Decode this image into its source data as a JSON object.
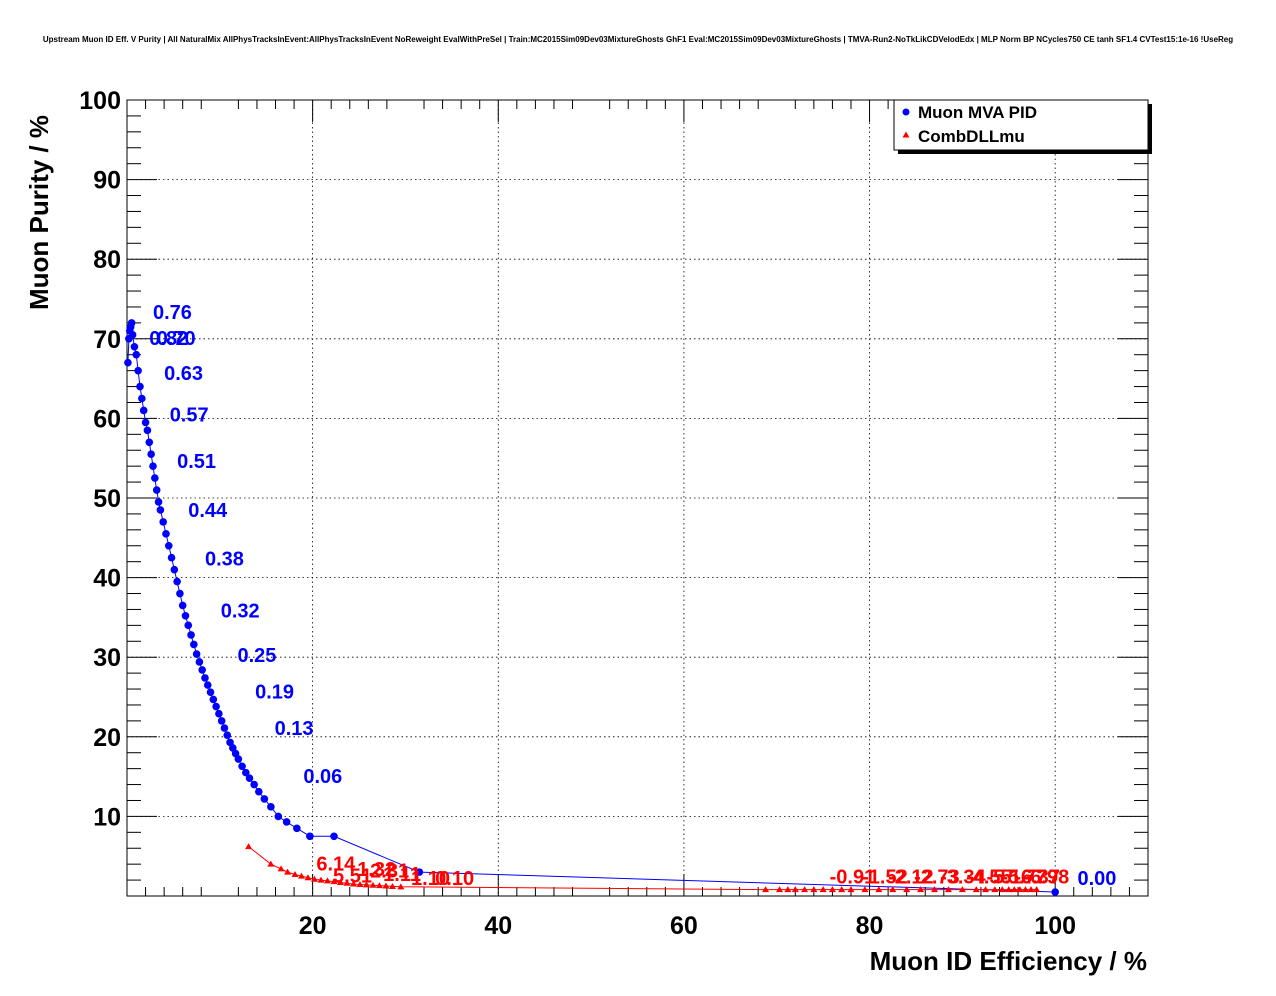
{
  "chart_data": {
    "type": "scatter",
    "title": "Upstream Muon ID Eff. V Purity | All NaturalMix AllPhysTracksInEvent:AllPhysTracksInEvent NoReweight EvalWithPreSel | Train:MC2015Sim09Dev03MixtureGhosts GhF1 Eval:MC2015Sim09Dev03MixtureGhosts | TMVA-Run2-NoTkLikCDVelodEdx | MLP Norm BP NCycles750 CE tanh SF1.4 CVTest15:1e-16 !UseReg",
    "xlabel": "Muon ID Efficiency / %",
    "ylabel": "Muon Purity / %",
    "xlim": [
      0,
      110
    ],
    "ylim": [
      0,
      100
    ],
    "x_ticks": [
      20,
      40,
      60,
      80,
      100
    ],
    "y_ticks": [
      10,
      20,
      30,
      40,
      50,
      60,
      70,
      80,
      90,
      100
    ],
    "grid": true,
    "legend_position": "top-right",
    "series": [
      {
        "name": "Muon MVA PID",
        "color": "#0000ff",
        "marker": "circle",
        "x": [
          0.1,
          0.2,
          0.3,
          0.4,
          0.5,
          0.6,
          0.8,
          1.0,
          1.2,
          1.4,
          1.6,
          1.8,
          2.0,
          2.2,
          2.4,
          2.6,
          2.8,
          3.0,
          3.2,
          3.4,
          3.6,
          3.9,
          4.2,
          4.5,
          4.8,
          5.1,
          5.4,
          5.7,
          6.0,
          6.3,
          6.6,
          6.9,
          7.2,
          7.5,
          7.8,
          8.1,
          8.4,
          8.7,
          9.0,
          9.3,
          9.6,
          9.9,
          10.2,
          10.5,
          10.8,
          11.1,
          11.4,
          11.7,
          12.0,
          12.4,
          12.8,
          13.2,
          13.7,
          14.2,
          14.8,
          15.5,
          16.3,
          17.2,
          18.3,
          19.7,
          22.3,
          31.5,
          100.0
        ],
        "y": [
          67.0,
          70.0,
          71.0,
          71.5,
          72.0,
          70.5,
          69.0,
          68.0,
          66.0,
          64.0,
          62.5,
          61.0,
          59.5,
          58.5,
          57.0,
          55.5,
          54.0,
          52.5,
          51.0,
          49.5,
          48.5,
          47.0,
          45.5,
          44.0,
          42.5,
          41.0,
          39.5,
          38.0,
          36.5,
          35.2,
          34.0,
          32.8,
          31.6,
          30.4,
          29.4,
          28.4,
          27.4,
          26.5,
          25.6,
          24.7,
          23.8,
          22.9,
          22.0,
          21.1,
          20.2,
          19.3,
          18.6,
          17.9,
          17.2,
          16.3,
          15.5,
          14.8,
          14.0,
          13.1,
          12.2,
          11.2,
          10.0,
          9.3,
          8.5,
          7.5,
          7.5,
          3.0,
          0.5
        ],
        "annotations": [
          {
            "text": "0.76",
            "x": 2.8,
            "y": 72.5
          },
          {
            "text": "0.82",
            "x": 2.4,
            "y": 69.2
          },
          {
            "text": "0.70",
            "x": 3.2,
            "y": 69.2
          },
          {
            "text": "0.63",
            "x": 4.0,
            "y": 64.8
          },
          {
            "text": "0.57",
            "x": 4.6,
            "y": 59.6
          },
          {
            "text": "0.51",
            "x": 5.4,
            "y": 53.8
          },
          {
            "text": "0.44",
            "x": 6.6,
            "y": 47.6
          },
          {
            "text": "0.38",
            "x": 8.4,
            "y": 41.5
          },
          {
            "text": "0.32",
            "x": 10.1,
            "y": 35.0
          },
          {
            "text": "0.25",
            "x": 11.9,
            "y": 29.4
          },
          {
            "text": "0.19",
            "x": 13.8,
            "y": 24.8
          },
          {
            "text": "0.13",
            "x": 15.9,
            "y": 20.2
          },
          {
            "text": "0.06",
            "x": 19.0,
            "y": 14.2
          },
          {
            "text": "0.00",
            "x": 102.4,
            "y": 1.4
          }
        ]
      },
      {
        "name": "CombDLLmu",
        "color": "#ff0000",
        "marker": "triangle",
        "x": [
          13.1,
          15.5,
          16.6,
          17.3,
          18.1,
          18.8,
          19.5,
          20.2,
          20.9,
          21.6,
          22.3,
          23.0,
          23.7,
          24.4,
          25.1,
          25.8,
          26.5,
          27.2,
          27.9,
          28.6,
          29.5,
          68.8,
          70.3,
          71.2,
          72.0,
          73.0,
          74.0,
          75.0,
          76.0,
          77.0,
          78.0,
          79.5,
          81.0,
          82.5,
          84.0,
          85.5,
          87.0,
          88.5,
          90.0,
          91.5,
          92.5,
          93.5,
          94.3,
          95.0,
          95.6,
          96.2,
          96.8,
          97.4,
          98.0
        ],
        "y": [
          6.2,
          4.0,
          3.4,
          3.0,
          2.7,
          2.5,
          2.3,
          2.1,
          2.0,
          1.9,
          1.8,
          1.7,
          1.6,
          1.5,
          1.45,
          1.4,
          1.35,
          1.3,
          1.25,
          1.2,
          1.15,
          0.8,
          0.8,
          0.8,
          0.8,
          0.8,
          0.8,
          0.8,
          0.8,
          0.8,
          0.8,
          0.8,
          0.8,
          0.8,
          0.8,
          0.8,
          0.8,
          0.8,
          0.8,
          0.8,
          0.8,
          0.8,
          0.8,
          0.8,
          0.8,
          0.8,
          0.8,
          0.8,
          0.8
        ],
        "annotations": [
          {
            "text": "6.14",
            "x": 20.4,
            "y": 3.2
          },
          {
            "text": "5.51",
            "x": 22.2,
            "y": 1.7
          },
          {
            "text": "1.32",
            "x": 24.8,
            "y": 2.5
          },
          {
            "text": "2.31",
            "x": 26.2,
            "y": 2.3
          },
          {
            "text": "1.11",
            "x": 27.6,
            "y": 1.9
          },
          {
            "text": "1.10",
            "x": 30.6,
            "y": 1.4
          },
          {
            "text": "0.10",
            "x": 33.2,
            "y": 1.4
          },
          {
            "text": "-0.91",
            "x": 75.7,
            "y": 1.6
          },
          {
            "text": "-1.52",
            "x": 79.2,
            "y": 1.6
          },
          {
            "text": "-2.12",
            "x": 82.0,
            "y": 1.6
          },
          {
            "text": "-2.73",
            "x": 84.8,
            "y": 1.6
          },
          {
            "text": "-3.34",
            "x": 87.6,
            "y": 1.6
          },
          {
            "text": "-4.55",
            "x": 90.4,
            "y": 1.6
          },
          {
            "text": "-5.16",
            "x": 92.6,
            "y": 1.6
          },
          {
            "text": "-5.77",
            "x": 94.2,
            "y": 1.6
          },
          {
            "text": "-6.37",
            "x": 95.6,
            "y": 1.6
          },
          {
            "text": "-6.98",
            "x": 96.6,
            "y": 1.6
          }
        ]
      }
    ]
  }
}
